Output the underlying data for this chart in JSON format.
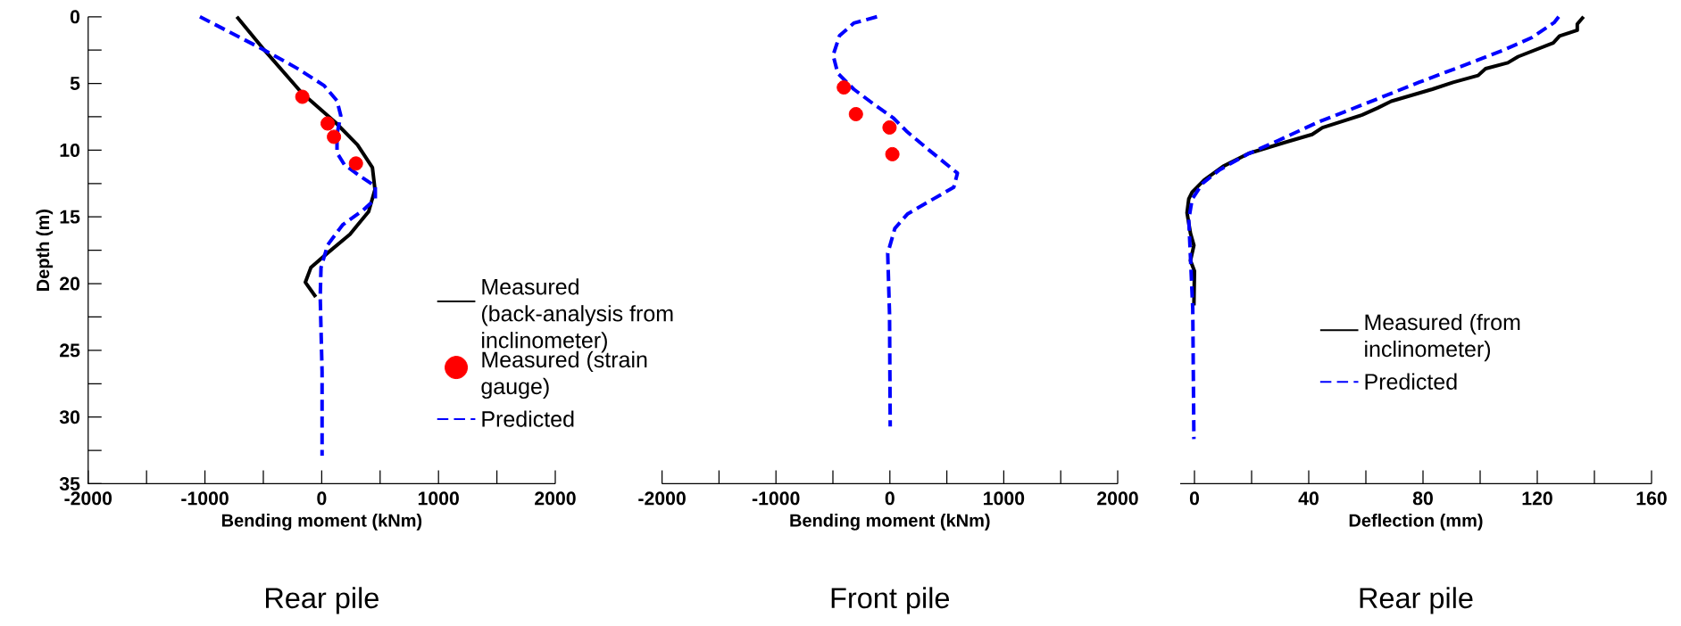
{
  "chart_data": [
    {
      "type": "line",
      "title": "Rear pile",
      "xlabel": "Bending moment (kNm)",
      "ylabel": "Depth (m)",
      "xlim": [
        -2000,
        2000
      ],
      "ylim": [
        35,
        0
      ],
      "xticks": [
        -2000,
        {
          "value": -1500,
          "label": null
        },
        -1000,
        {
          "value": -500,
          "label": null
        },
        0,
        {
          "value": 500,
          "label": null
        },
        1000,
        {
          "value": 1500,
          "label": null
        },
        2000
      ],
      "yticks": [
        0,
        {
          "value": 2.5,
          "label": null
        },
        5,
        {
          "value": 7.5,
          "label": null
        },
        10,
        {
          "value": 12.5,
          "label": null
        },
        15,
        {
          "value": 17.5,
          "label": null
        },
        20,
        {
          "value": 22.5,
          "label": null
        },
        25,
        {
          "value": 27.5,
          "label": null
        },
        30,
        {
          "value": 32.5,
          "label": null
        },
        35
      ],
      "legend": "right",
      "series": [
        {
          "name": "Measured (back-analysis from inclinometer)",
          "line_style": "solid",
          "color": "#000000",
          "x": [
            -727,
            -491,
            -172,
            115,
            306,
            434,
            456,
            402,
            242,
            51,
            -93,
            -140,
            -51
          ],
          "values": [
            0,
            2.5,
            5.7,
            7.9,
            9.6,
            11.3,
            12.95,
            14.6,
            16.3,
            17.7,
            18.8,
            19.9,
            21
          ]
        },
        {
          "name": "Measured (strain gauge)",
          "type": "scatter",
          "marker": "circle",
          "color": "#ff0000",
          "x": [
            -166,
            51,
            105,
            293
          ],
          "values": [
            6,
            8,
            9,
            11
          ]
        },
        {
          "name": "Predicted",
          "line_style": "dashed",
          "color": "#0000ff",
          "x": [
            -1043,
            -491,
            -204,
            19,
            131,
            163,
            131,
            131,
            195,
            338,
            459,
            459,
            354,
            179,
            51,
            -6,
            -13,
            3,
            3
          ],
          "values": [
            0,
            2.5,
            3.9,
            5.15,
            6.3,
            7.4,
            8.8,
            10.2,
            11.1,
            12.0,
            12.7,
            13.65,
            14.5,
            15.6,
            17.1,
            18.8,
            21,
            26.6,
            32.9
          ]
        }
      ]
    },
    {
      "type": "line",
      "title": "Front pile",
      "xlabel": "Bending moment (kNm)",
      "xlim": [
        -2000,
        2000
      ],
      "ylim": [
        35,
        0
      ],
      "tick_labels": "x",
      "xticks": [
        -2000,
        {
          "value": -1500,
          "label": null
        },
        -1000,
        {
          "value": -500,
          "label": null
        },
        0,
        {
          "value": 500,
          "label": null
        },
        1000,
        {
          "value": 1500,
          "label": null
        },
        2000
      ],
      "series": [
        {
          "type": "scatter",
          "marker": "circle",
          "color": "#ff0000",
          "x": [
            -404,
            -298,
            -3,
            22
          ],
          "values": [
            5.3,
            7.3,
            8.3,
            10.3
          ]
        },
        {
          "line_style": "dashed",
          "color": "#0000ff",
          "x": [
            -113,
            -317,
            -442,
            -498,
            -458,
            -317,
            -129,
            28,
            154,
            342,
            593,
            561,
            342,
            154,
            44,
            -19,
            -3,
            3
          ],
          "values": [
            0,
            0.48,
            1.42,
            2.89,
            4.23,
            5.43,
            6.63,
            7.57,
            8.64,
            9.98,
            11.72,
            12.78,
            13.85,
            14.79,
            15.86,
            17.73,
            22.28,
            30.7
          ]
        }
      ]
    },
    {
      "type": "line",
      "title": "Rear pile",
      "xlabel": "Deflection (mm)",
      "xlim": [
        -5,
        160
      ],
      "ylim": [
        35,
        0
      ],
      "tick_labels": "x",
      "xticks": [
        0,
        {
          "value": 20,
          "label": null
        },
        40,
        {
          "value": 60,
          "label": null
        },
        80,
        {
          "value": 100,
          "label": null
        },
        120,
        {
          "value": 140,
          "label": null
        },
        160
      ],
      "legend": "bottom right",
      "series": [
        {
          "name": "Measured (from inclinometer)",
          "line_style": "solid",
          "color": "#000000",
          "x": [
            136.2,
            134,
            134,
            127.8,
            125.6,
            113.3,
            109.7,
            101.9,
            99.3,
            90.5,
            83.3,
            68.9,
            64.1,
            58.7,
            44.8,
            41.2,
            31.6,
            19.0,
            10.0,
            3.4,
            -0.8,
            -2.0,
            -2.6,
            -1.4,
            -0.2,
            -1.4,
            0,
            -0.2
          ],
          "values": [
            0,
            0.55,
            1.01,
            1.45,
            1.96,
            2.99,
            3.45,
            3.89,
            4.4,
            4.92,
            5.43,
            6.33,
            6.84,
            7.36,
            8.31,
            8.82,
            9.42,
            10.24,
            11.22,
            12.24,
            13.14,
            13.66,
            14.69,
            16.23,
            17.13,
            18.28,
            19.06,
            21.63
          ]
        },
        {
          "name": "Predicted",
          "line_style": "dashed",
          "color": "#0000ff",
          "x": [
            127.5,
            126,
            118,
            108.5,
            92.9,
            78.5,
            60.5,
            43.6,
            29.2,
            18.4,
            8.8,
            2.8,
            -0.8,
            -2.0,
            -1.4,
            -0.6,
            -0.2
          ],
          "values": [
            0,
            0.42,
            1.57,
            2.47,
            3.76,
            4.92,
            6.46,
            7.87,
            9.29,
            10.32,
            11.47,
            12.5,
            13.66,
            15.2,
            18.03,
            21.88,
            31.65
          ]
        }
      ]
    }
  ]
}
